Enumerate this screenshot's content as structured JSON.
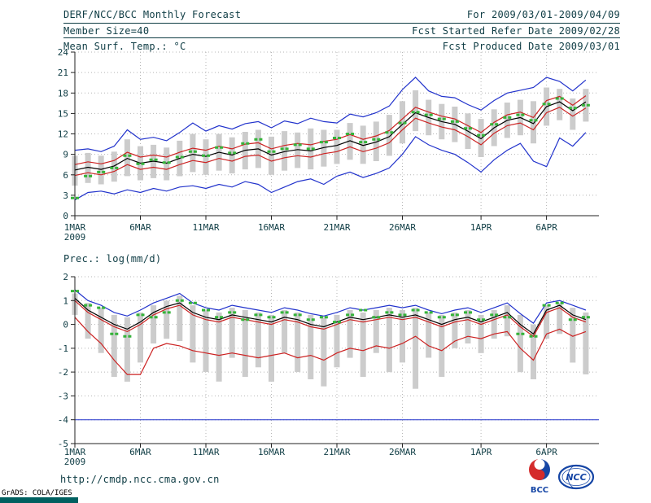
{
  "header": {
    "title": "DERF/NCC/BCC Monthly Forecast",
    "member_size": "Member Size=40",
    "temp_label": "Mean Surf. Temp.: °C",
    "period": "For 2009/03/01-2009/04/09",
    "refer": "Fcst Started Refer Date 2009/02/28",
    "produced": "Fcst Produced Date 2009/03/01"
  },
  "prec_label": "Prec.: log(mm/d)",
  "footer": {
    "url": "http://cmdp.ncc.cma.gov.cn",
    "credit": "GrADS: COLA/IGES",
    "bcc": "BCC",
    "ncc": "NCC"
  },
  "colors": {
    "text": "#0e3c44",
    "axis": "#222222",
    "grid": "#b5b5b5",
    "bar": "#cccccc",
    "blue": "#2233cc",
    "red": "#cc2222",
    "black": "#000000",
    "green": "#35b33a",
    "stamp": "#006060",
    "credit": "#000000",
    "logo_blue": "#1545a5",
    "logo_red": "#d42b2b"
  },
  "chart_data": [
    {
      "id": "temp",
      "type": "line",
      "title": "Mean Surf. Temp.: °C",
      "ylabel": "°C",
      "ylim": [
        0,
        24
      ],
      "yticks": [
        0,
        3,
        6,
        9,
        12,
        15,
        18,
        21,
        24
      ],
      "n": 40,
      "xticks": [
        {
          "day": 0,
          "label": "1MAR",
          "sub": "2009"
        },
        {
          "day": 5,
          "label": "6MAR"
        },
        {
          "day": 10,
          "label": "11MAR"
        },
        {
          "day": 15,
          "label": "16MAR"
        },
        {
          "day": 20,
          "label": "21MAR"
        },
        {
          "day": 25,
          "label": "26MAR"
        },
        {
          "day": 31,
          "label": "1APR"
        },
        {
          "day": 36,
          "label": "6APR"
        }
      ],
      "series": [
        {
          "name": "ensemble-max",
          "color": "blue",
          "values": [
            9.6,
            9.8,
            9.4,
            10.2,
            12.6,
            11.2,
            11.5,
            11.0,
            12.2,
            13.6,
            12.4,
            13.2,
            12.7,
            13.5,
            13.8,
            12.9,
            13.9,
            13.5,
            14.3,
            13.8,
            13.6,
            14.9,
            14.5,
            15.1,
            16.1,
            18.5,
            20.3,
            18.3,
            17.5,
            17.3,
            16.3,
            15.5,
            16.9,
            18.0,
            18.4,
            18.8,
            20.3,
            19.7,
            18.3,
            19.9
          ]
        },
        {
          "name": "upper-quartile",
          "color": "red",
          "values": [
            7.5,
            7.9,
            7.6,
            8.1,
            9.3,
            8.6,
            8.9,
            8.6,
            9.3,
            9.9,
            9.6,
            10.2,
            9.8,
            10.5,
            10.7,
            9.8,
            10.3,
            10.6,
            10.4,
            10.9,
            11.2,
            11.9,
            11.2,
            11.7,
            12.5,
            14.2,
            15.9,
            15.2,
            14.6,
            14.2,
            13.2,
            12.2,
            13.7,
            14.8,
            15.2,
            14.4,
            16.9,
            17.5,
            16.2,
            17.6
          ]
        },
        {
          "name": "ensemble-mean",
          "color": "black",
          "values": [
            6.7,
            7.1,
            6.8,
            7.3,
            8.4,
            7.7,
            8.0,
            7.7,
            8.4,
            9.0,
            8.7,
            9.3,
            8.9,
            9.6,
            9.8,
            8.9,
            9.4,
            9.7,
            9.5,
            10.0,
            10.3,
            11.0,
            10.3,
            10.8,
            11.6,
            13.4,
            15.1,
            14.4,
            13.8,
            13.4,
            12.4,
            11.3,
            12.9,
            14.0,
            14.4,
            13.5,
            16.0,
            16.7,
            15.4,
            16.7
          ]
        },
        {
          "name": "lower-quartile",
          "color": "red",
          "values": [
            5.9,
            6.3,
            6.0,
            6.5,
            7.5,
            6.8,
            7.1,
            6.8,
            7.5,
            8.1,
            7.8,
            8.4,
            8.0,
            8.7,
            8.9,
            8.0,
            8.5,
            8.8,
            8.6,
            9.1,
            9.4,
            10.1,
            9.4,
            9.9,
            10.7,
            12.6,
            14.3,
            13.6,
            13.0,
            12.6,
            11.6,
            10.4,
            12.1,
            13.2,
            13.6,
            12.6,
            15.1,
            15.9,
            14.6,
            15.8
          ]
        },
        {
          "name": "ensemble-min",
          "color": "blue",
          "values": [
            2.3,
            3.4,
            3.6,
            3.2,
            3.8,
            3.4,
            4.0,
            3.6,
            4.2,
            4.4,
            4.0,
            4.6,
            4.2,
            5.0,
            4.6,
            3.4,
            4.2,
            5.0,
            5.4,
            4.6,
            5.8,
            6.4,
            5.6,
            6.2,
            7.0,
            9.0,
            11.6,
            10.4,
            9.6,
            9.0,
            7.8,
            6.4,
            8.2,
            9.6,
            10.6,
            8.0,
            7.2,
            11.4,
            10.2,
            12.2
          ]
        },
        {
          "name": "observation",
          "color": "green",
          "style": "dashes",
          "values": [
            2.6,
            5.8,
            6.4,
            7.0,
            8.8,
            7.6,
            8.2,
            7.8,
            8.6,
            9.4,
            8.8,
            10.0,
            9.2,
            10.6,
            11.2,
            9.4,
            9.8,
            10.4,
            9.8,
            10.8,
            11.4,
            12.0,
            10.8,
            11.2,
            12.2,
            13.6,
            15.2,
            14.8,
            14.2,
            13.8,
            12.8,
            11.8,
            13.4,
            14.4,
            14.8,
            14.0,
            16.4,
            17.2,
            15.8,
            16.2
          ]
        }
      ],
      "bars": {
        "name": "ensemble-spread",
        "high": [
          8.8,
          9.2,
          8.8,
          9.4,
          11.2,
          10.2,
          10.4,
          10.0,
          11.0,
          12.0,
          11.2,
          12.0,
          11.5,
          12.3,
          12.6,
          11.6,
          12.4,
          12.2,
          12.8,
          12.6,
          12.6,
          13.6,
          13.2,
          13.8,
          14.8,
          16.8,
          18.4,
          17.0,
          16.4,
          16.0,
          15.0,
          14.2,
          15.6,
          16.6,
          17.0,
          16.8,
          18.8,
          18.6,
          17.2,
          18.6
        ],
        "low": [
          4.4,
          4.8,
          4.6,
          5.0,
          5.8,
          5.2,
          5.5,
          5.2,
          5.8,
          6.4,
          6.0,
          6.6,
          6.2,
          6.8,
          7.0,
          6.0,
          6.6,
          7.0,
          6.8,
          7.2,
          7.6,
          8.2,
          7.6,
          8.0,
          8.8,
          10.6,
          12.4,
          11.8,
          11.2,
          10.8,
          9.8,
          8.6,
          10.2,
          11.4,
          11.8,
          10.6,
          13.2,
          14.0,
          12.6,
          13.8
        ]
      }
    },
    {
      "id": "prec",
      "type": "line",
      "title": "Prec.: log(mm/d)",
      "ylabel": "log(mm/d)",
      "ylim": [
        -5,
        2
      ],
      "yticks": [
        -5,
        -4,
        -3,
        -2,
        -1,
        0,
        1,
        2
      ],
      "ref_line": -4,
      "n": 40,
      "xticks": [
        {
          "day": 0,
          "label": "1MAR",
          "sub": "2009"
        },
        {
          "day": 5,
          "label": "6MAR"
        },
        {
          "day": 10,
          "label": "11MAR"
        },
        {
          "day": 15,
          "label": "16MAR"
        },
        {
          "day": 20,
          "label": "21MAR"
        },
        {
          "day": 25,
          "label": "26MAR"
        },
        {
          "day": 31,
          "label": "1APR"
        },
        {
          "day": 36,
          "label": "6APR"
        }
      ],
      "series": [
        {
          "name": "ensemble-max",
          "color": "blue",
          "values": [
            1.45,
            1.0,
            0.8,
            0.5,
            0.35,
            0.6,
            0.9,
            1.1,
            1.3,
            0.9,
            0.7,
            0.6,
            0.8,
            0.7,
            0.6,
            0.5,
            0.7,
            0.6,
            0.45,
            0.35,
            0.5,
            0.7,
            0.6,
            0.7,
            0.8,
            0.7,
            0.8,
            0.6,
            0.45,
            0.6,
            0.7,
            0.5,
            0.7,
            0.9,
            0.45,
            0.05,
            0.9,
            1.0,
            0.8,
            0.6
          ]
        },
        {
          "name": "ensemble-mean",
          "color": "black",
          "values": [
            1.1,
            0.6,
            0.3,
            0.0,
            -0.2,
            0.1,
            0.5,
            0.75,
            0.9,
            0.5,
            0.3,
            0.2,
            0.4,
            0.3,
            0.2,
            0.1,
            0.3,
            0.2,
            0.0,
            -0.1,
            0.1,
            0.3,
            0.2,
            0.3,
            0.4,
            0.3,
            0.4,
            0.2,
            0.0,
            0.2,
            0.3,
            0.1,
            0.3,
            0.5,
            0.0,
            -0.4,
            0.6,
            0.8,
            0.4,
            0.2
          ]
        },
        {
          "name": "upper-quartile",
          "color": "red",
          "values": [
            1.0,
            0.5,
            0.2,
            -0.1,
            -0.3,
            0.0,
            0.4,
            0.65,
            0.8,
            0.4,
            0.2,
            0.1,
            0.3,
            0.2,
            0.1,
            0.0,
            0.2,
            0.1,
            -0.1,
            -0.2,
            0.0,
            0.2,
            0.1,
            0.2,
            0.3,
            0.2,
            0.3,
            0.1,
            -0.1,
            0.1,
            0.2,
            0.0,
            0.2,
            0.4,
            -0.1,
            -0.5,
            0.5,
            0.7,
            0.3,
            0.1
          ]
        },
        {
          "name": "lower-quartile",
          "color": "red",
          "values": [
            0.3,
            -0.3,
            -0.8,
            -1.5,
            -2.1,
            -2.1,
            -1.0,
            -0.8,
            -0.9,
            -1.1,
            -1.2,
            -1.3,
            -1.2,
            -1.3,
            -1.4,
            -1.3,
            -1.2,
            -1.4,
            -1.3,
            -1.5,
            -1.2,
            -1.0,
            -1.1,
            -0.9,
            -1.0,
            -0.8,
            -0.5,
            -0.9,
            -1.1,
            -0.7,
            -0.5,
            -0.6,
            -0.4,
            -0.3,
            -1.0,
            -1.5,
            -0.4,
            -0.2,
            -0.5,
            -0.3
          ]
        },
        {
          "name": "observation",
          "color": "green",
          "style": "dashes",
          "values": [
            1.4,
            0.8,
            0.7,
            -0.4,
            -0.5,
            0.4,
            0.3,
            0.5,
            1.0,
            0.9,
            0.6,
            0.3,
            0.5,
            0.2,
            0.4,
            0.3,
            0.5,
            0.4,
            0.2,
            0.3,
            0.1,
            0.4,
            0.6,
            0.3,
            0.5,
            0.4,
            0.6,
            0.5,
            0.3,
            0.4,
            0.5,
            0.2,
            0.4,
            0.3,
            -0.4,
            -0.5,
            0.8,
            0.9,
            0.2,
            0.3
          ]
        }
      ],
      "bars": {
        "name": "ensemble-spread",
        "high": [
          1.3,
          0.9,
          0.7,
          0.4,
          0.3,
          0.5,
          0.8,
          1.0,
          1.2,
          0.8,
          0.6,
          0.5,
          0.7,
          0.6,
          0.5,
          0.4,
          0.6,
          0.5,
          0.4,
          0.3,
          0.4,
          0.6,
          0.5,
          0.6,
          0.7,
          0.6,
          0.7,
          0.5,
          0.4,
          0.5,
          0.6,
          0.4,
          0.6,
          0.8,
          0.4,
          0.0,
          0.8,
          0.9,
          0.7,
          0.5
        ],
        "low": [
          0.4,
          -0.6,
          -1.2,
          -2.2,
          -2.4,
          -1.6,
          -0.8,
          -0.6,
          -0.7,
          -1.6,
          -2.0,
          -2.4,
          -1.4,
          -2.2,
          -1.8,
          -2.4,
          -1.2,
          -2.0,
          -2.3,
          -2.6,
          -1.8,
          -1.4,
          -2.2,
          -1.2,
          -2.0,
          -1.6,
          -2.7,
          -1.4,
          -2.2,
          -1.0,
          -0.8,
          -1.2,
          -0.6,
          -0.5,
          -2.0,
          -2.3,
          -0.6,
          -0.4,
          -1.6,
          -2.1
        ]
      }
    }
  ]
}
